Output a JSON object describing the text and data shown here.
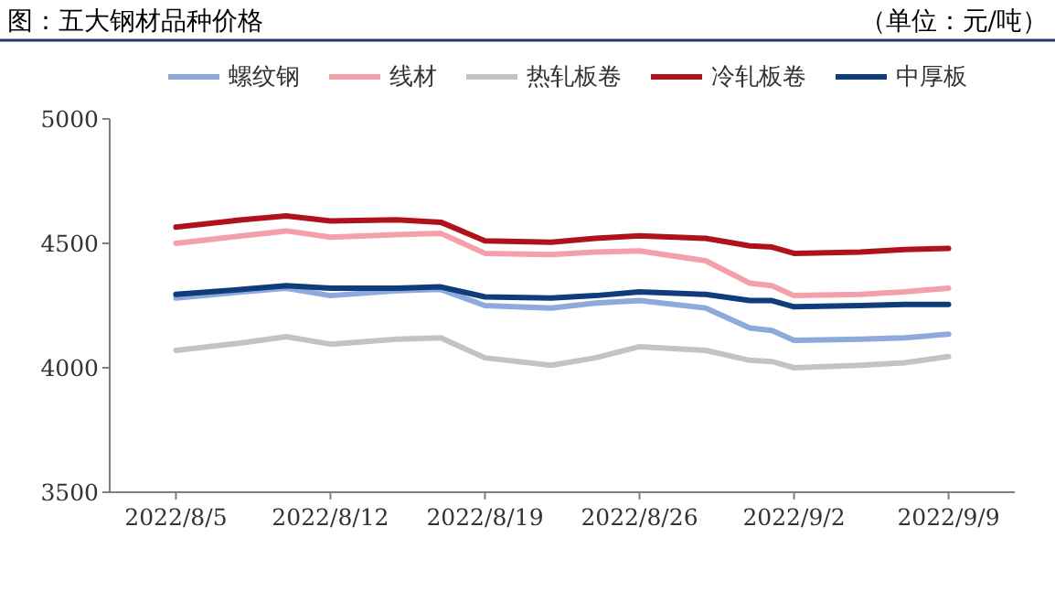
{
  "chart_data": {
    "type": "line",
    "title": "图：五大钢材品种价格",
    "subtitle": "（单位：元/吨）",
    "x": [
      "2022-08-05",
      "2022-08-08",
      "2022-08-10",
      "2022-08-12",
      "2022-08-15",
      "2022-08-17",
      "2022-08-19",
      "2022-08-22",
      "2022-08-24",
      "2022-08-26",
      "2022-08-29",
      "2022-08-31",
      "2022-09-01",
      "2022-09-02",
      "2022-09-05",
      "2022-09-07",
      "2022-09-09"
    ],
    "series": [
      {
        "name": "螺纹钢",
        "color": "#8ea9db",
        "values": [
          4280,
          4305,
          4320,
          4290,
          4310,
          4315,
          4250,
          4240,
          4260,
          4270,
          4240,
          4160,
          4150,
          4110,
          4115,
          4120,
          4135
        ]
      },
      {
        "name": "线材",
        "color": "#f4a0aa",
        "values": [
          4500,
          4530,
          4550,
          4525,
          4535,
          4540,
          4460,
          4455,
          4465,
          4470,
          4430,
          4340,
          4330,
          4290,
          4295,
          4305,
          4320
        ]
      },
      {
        "name": "热轧板卷",
        "color": "#c3c3c3",
        "values": [
          4070,
          4100,
          4125,
          4095,
          4115,
          4120,
          4040,
          4010,
          4040,
          4085,
          4070,
          4030,
          4025,
          4000,
          4010,
          4020,
          4045
        ]
      },
      {
        "name": "冷轧板卷",
        "color": "#b0121b",
        "values": [
          4565,
          4595,
          4610,
          4590,
          4595,
          4585,
          4510,
          4505,
          4520,
          4530,
          4520,
          4490,
          4485,
          4460,
          4465,
          4475,
          4480
        ]
      },
      {
        "name": "中厚板",
        "color": "#0f3c7a",
        "values": [
          4295,
          4315,
          4330,
          4320,
          4320,
          4325,
          4285,
          4280,
          4290,
          4305,
          4295,
          4270,
          4270,
          4245,
          4250,
          4255,
          4255
        ]
      }
    ],
    "xlim": [
      "2022-08-02",
      "2022-09-12"
    ],
    "xticks": [
      {
        "value": "2022-08-05",
        "label": "2022/8/5"
      },
      {
        "value": "2022-08-12",
        "label": "2022/8/12"
      },
      {
        "value": "2022-08-19",
        "label": "2022/8/19"
      },
      {
        "value": "2022-08-26",
        "label": "2022/8/26"
      },
      {
        "value": "2022-09-02",
        "label": "2022/9/2"
      },
      {
        "value": "2022-09-09",
        "label": "2022/9/9"
      }
    ],
    "ylim": [
      3500,
      5000
    ],
    "yticks": [
      3500,
      4000,
      4500,
      5000
    ],
    "grid": false,
    "legend": "top",
    "marker": "none",
    "line_style": "solid"
  }
}
